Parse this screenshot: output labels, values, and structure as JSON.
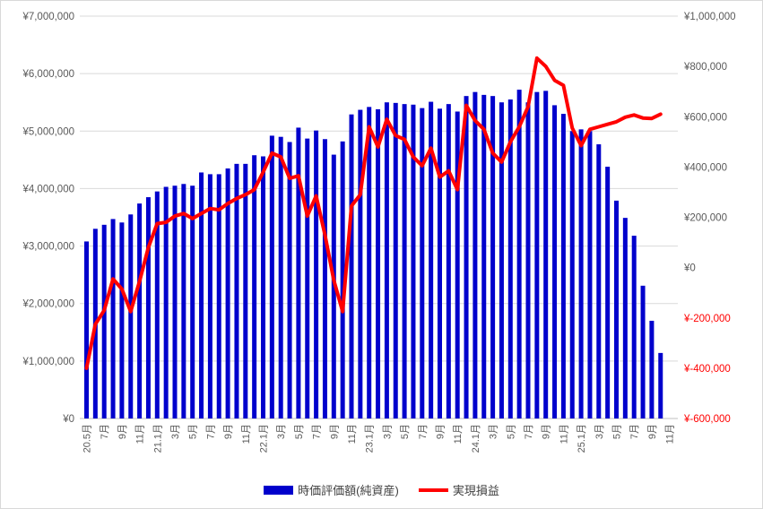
{
  "chart_data": {
    "type": "combo",
    "title": "",
    "n_slots": 67,
    "tick_every": 2,
    "x_tick_labels": [
      "20.5月",
      "7月",
      "9月",
      "11月",
      "21.1月",
      "3月",
      "5月",
      "7月",
      "9月",
      "11月",
      "22.1月",
      "3月",
      "5月",
      "7月",
      "9月",
      "11月",
      "23.1月",
      "3月",
      "5月",
      "7月",
      "9月",
      "11月",
      "24.1月",
      "3月",
      "5月",
      "7月",
      "9月",
      "11月",
      "25.1月",
      "3月",
      "5月",
      "7月",
      "9月",
      "11月"
    ],
    "months": [
      "2020-05",
      "2020-06",
      "2020-07",
      "2020-08",
      "2020-09",
      "2020-10",
      "2020-11",
      "2020-12",
      "2021-01",
      "2021-02",
      "2021-03",
      "2021-04",
      "2021-05",
      "2021-06",
      "2021-07",
      "2021-08",
      "2021-09",
      "2021-10",
      "2021-11",
      "2021-12",
      "2022-01",
      "2022-02",
      "2022-03",
      "2022-04",
      "2022-05",
      "2022-06",
      "2022-07",
      "2022-08",
      "2022-09",
      "2022-10",
      "2022-11",
      "2022-12",
      "2023-01",
      "2023-02",
      "2023-03",
      "2023-04",
      "2023-05",
      "2023-06",
      "2023-07",
      "2023-08",
      "2023-09",
      "2023-10",
      "2023-11",
      "2023-12",
      "2024-01",
      "2024-02",
      "2024-03",
      "2024-04",
      "2024-05",
      "2024-06",
      "2024-07",
      "2024-08",
      "2024-09",
      "2024-10",
      "2024-11",
      "2024-12",
      "2025-01",
      "2025-02",
      "2025-03",
      "2025-04",
      "2025-05",
      "2025-06",
      "2025-07",
      "2025-08",
      "2025-09",
      "2025-10"
    ],
    "series": [
      {
        "name": "時価評価額(純資産)",
        "type": "bar",
        "axis": "left",
        "color": "#0000cc",
        "values": [
          3080000,
          3300000,
          3370000,
          3470000,
          3410000,
          3550000,
          3740000,
          3850000,
          3950000,
          4030000,
          4050000,
          4080000,
          4050000,
          4280000,
          4250000,
          4250000,
          4350000,
          4430000,
          4430000,
          4580000,
          4560000,
          4920000,
          4900000,
          4810000,
          5060000,
          4870000,
          5010000,
          4860000,
          4590000,
          4820000,
          5290000,
          5370000,
          5420000,
          5380000,
          5500000,
          5490000,
          5470000,
          5460000,
          5400000,
          5510000,
          5390000,
          5470000,
          5340000,
          5610000,
          5680000,
          5630000,
          5610000,
          5500000,
          5550000,
          5720000,
          5500000,
          5680000,
          5700000,
          5450000,
          5300000,
          5000000,
          5030000,
          5000000,
          4770000,
          4380000,
          3790000,
          3490000,
          3180000,
          2310000,
          1700000,
          1140000
        ]
      },
      {
        "name": "実現損益",
        "type": "line",
        "axis": "right",
        "color": "#ff0000",
        "values": [
          -400000,
          -225000,
          -170000,
          -45000,
          -85000,
          -175000,
          -55000,
          80000,
          175000,
          180000,
          205000,
          215000,
          195000,
          215000,
          235000,
          230000,
          255000,
          275000,
          290000,
          310000,
          380000,
          455000,
          440000,
          355000,
          365000,
          205000,
          285000,
          130000,
          -50000,
          -175000,
          245000,
          290000,
          560000,
          480000,
          590000,
          525000,
          510000,
          440000,
          405000,
          475000,
          360000,
          385000,
          310000,
          645000,
          585000,
          550000,
          455000,
          420000,
          500000,
          560000,
          640000,
          833000,
          800000,
          745000,
          725000,
          555000,
          485000,
          550000,
          560000,
          570000,
          580000,
          598000,
          607000,
          595000,
          593000,
          610000
        ]
      }
    ],
    "left_axis": {
      "min": 0,
      "max": 7000000,
      "step": 1000000,
      "labels_top_to_bottom": [
        "¥7,000,000",
        "¥6,000,000",
        "¥5,000,000",
        "¥4,000,000",
        "¥3,000,000",
        "¥2,000,000",
        "¥1,000,000",
        "¥0"
      ]
    },
    "right_axis": {
      "min": -600000,
      "max": 1000000,
      "step": 200000,
      "labels_top_to_bottom": [
        "¥1,000,000",
        "¥800,000",
        "¥600,000",
        "¥400,000",
        "¥200,000",
        "¥0",
        "¥-200,000",
        "¥-400,000",
        "¥-600,000"
      ],
      "negative_label_color": "#ff0000"
    },
    "grid": true,
    "legend_position": "bottom",
    "colors": {
      "grid": "#d9d9d9",
      "axis_line": "#bfbfbf",
      "tick_label": "#595959"
    }
  },
  "legend": {
    "items": [
      {
        "label": "時価評価額(純資産)",
        "swatch": "bar",
        "color": "#0000cc"
      },
      {
        "label": "実現損益",
        "swatch": "line",
        "color": "#ff0000"
      }
    ]
  }
}
